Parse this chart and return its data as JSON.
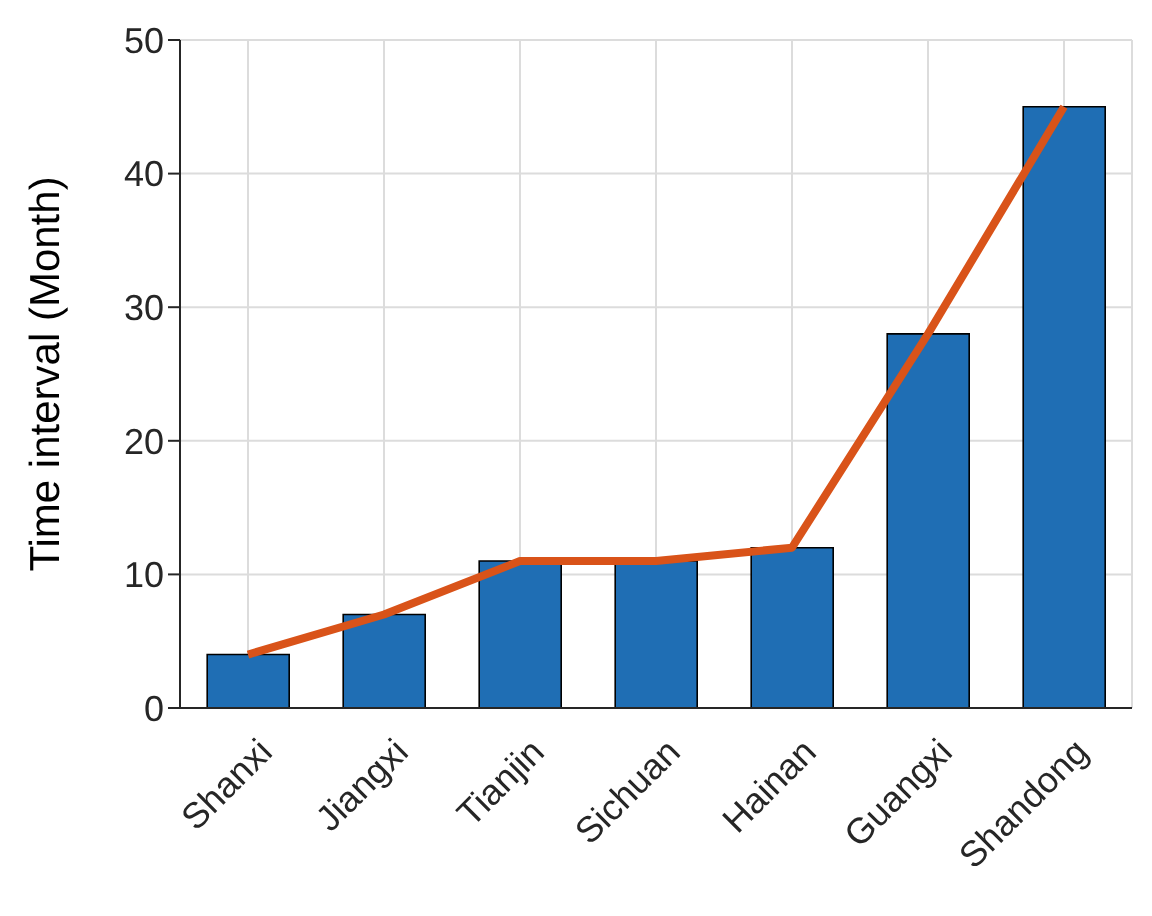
{
  "chart_data": {
    "type": "bar",
    "ylabel": "Time interval (Month)",
    "categories": [
      "Shanxi",
      "Jiangxi",
      "Tianjin",
      "Sichuan",
      "Hainan",
      "Guangxi",
      "Shandong"
    ],
    "series": [
      {
        "color": "#1f6eb4",
        "values": [
          4,
          7,
          11,
          11,
          12,
          28,
          45
        ]
      },
      {
        "type": "line",
        "color": "#d95319",
        "values": [
          4,
          7,
          11,
          11,
          12,
          28,
          45
        ]
      }
    ],
    "ylim": [
      0,
      50
    ],
    "yticks": [
      0,
      10,
      20,
      30,
      40,
      50
    ],
    "grid": true,
    "legend": false,
    "marker": "none"
  }
}
